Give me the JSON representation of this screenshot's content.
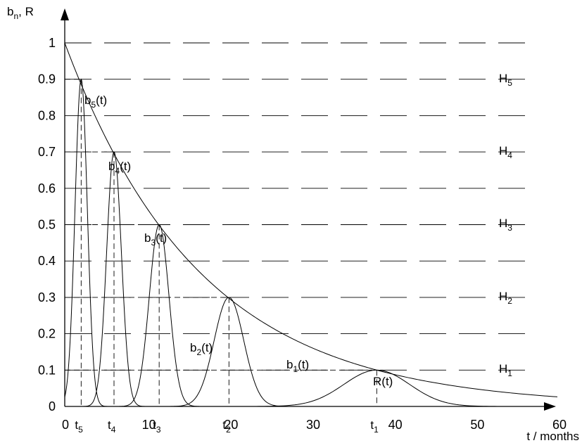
{
  "chart_data": {
    "type": "line",
    "ylabel": {
      "base": "b",
      "sub": "n",
      "rest": ", R"
    },
    "xlabel": "t / months",
    "xlim": [
      0,
      60
    ],
    "ylim": [
      0,
      1
    ],
    "x_ticks": [
      "0",
      "10",
      "20",
      "30",
      "40",
      "50",
      "60"
    ],
    "y_ticks": [
      "0",
      "0.1",
      "0.2",
      "0.3",
      "0.4",
      "0.5",
      "0.6",
      "0.7",
      "0.8",
      "0.9",
      "1"
    ],
    "grid": "dashed horizontal at 0.1 intervals",
    "reliability_curve": {
      "label": "R(t)",
      "type": "exponential decay",
      "points": [
        [
          0,
          1.0
        ],
        [
          2,
          0.9
        ],
        [
          6,
          0.7
        ],
        [
          11.5,
          0.5
        ],
        [
          20,
          0.3
        ],
        [
          38,
          0.1
        ],
        [
          60,
          0.01
        ]
      ]
    },
    "peaks": [
      {
        "label": {
          "base": "b",
          "sub": "5",
          "rest": "(t)"
        },
        "t_label": {
          "base": "t",
          "sub": "5"
        },
        "t": 2,
        "peak": 0.9
      },
      {
        "label": {
          "base": "b",
          "sub": "4",
          "rest": "(t)"
        },
        "t_label": {
          "base": "t",
          "sub": "4"
        },
        "t": 6,
        "peak": 0.7
      },
      {
        "label": {
          "base": "b",
          "sub": "3",
          "rest": "(t)"
        },
        "t_label": {
          "base": "t",
          "sub": "3"
        },
        "t": 11.5,
        "peak": 0.5
      },
      {
        "label": {
          "base": "b",
          "sub": "2",
          "rest": "(t)"
        },
        "t_label": {
          "base": "t",
          "sub": "2"
        },
        "t": 20,
        "peak": 0.3
      },
      {
        "label": {
          "base": "b",
          "sub": "1",
          "rest": "(t)"
        },
        "t_label": {
          "base": "t",
          "sub": "1"
        },
        "t": 38,
        "peak": 0.1
      }
    ],
    "regions": [
      {
        "base": "H",
        "sub": "5"
      },
      {
        "base": "H",
        "sub": "4"
      },
      {
        "base": "H",
        "sub": "3"
      },
      {
        "base": "H",
        "sub": "2"
      },
      {
        "base": "H",
        "sub": "1"
      }
    ]
  }
}
